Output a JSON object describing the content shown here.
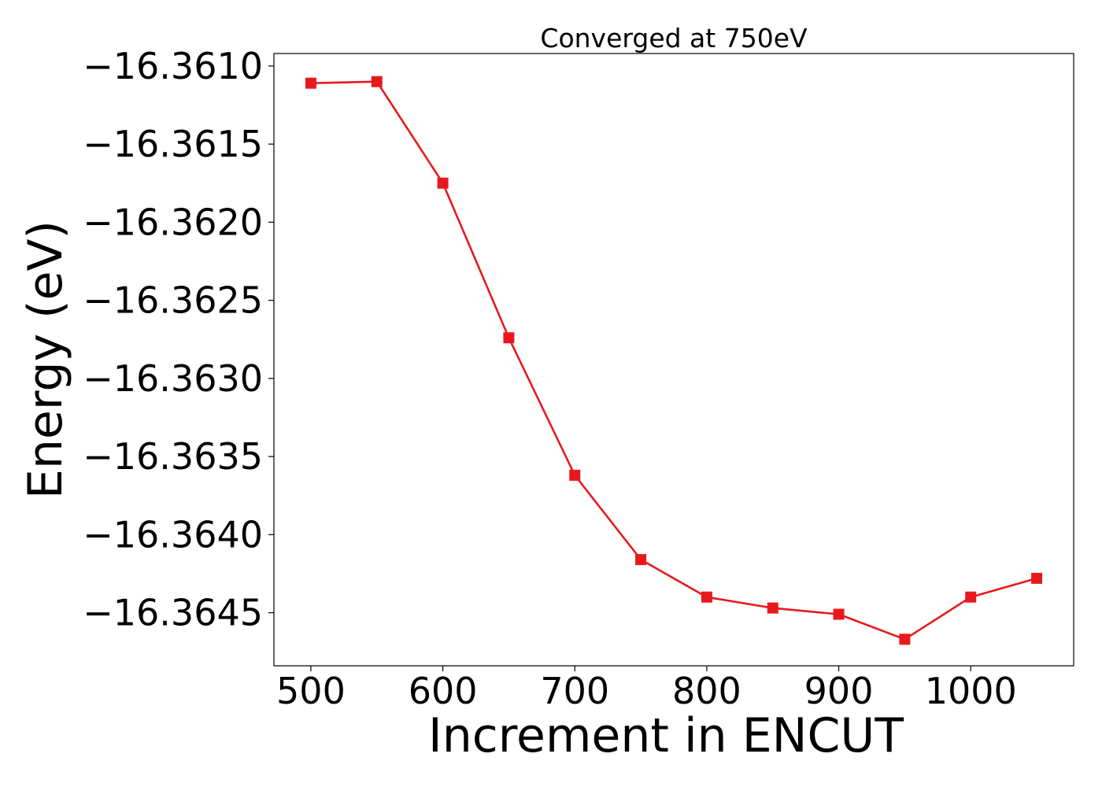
{
  "chart_data": {
    "type": "line",
    "title": "Converged at 750eV",
    "xlabel": "Increment in ENCUT",
    "ylabel": "Energy (eV)",
    "xlim": [
      472,
      1078
    ],
    "ylim": [
      -16.36484,
      -16.36092
    ],
    "xticks": [
      500,
      600,
      700,
      800,
      900,
      1000
    ],
    "xtick_labels": [
      "500",
      "600",
      "700",
      "800",
      "900",
      "1000"
    ],
    "yticks": [
      -16.361,
      -16.3615,
      -16.362,
      -16.3625,
      -16.363,
      -16.3635,
      -16.364,
      -16.3645
    ],
    "ytick_labels": [
      "−16.3610",
      "−16.3615",
      "−16.3620",
      "−16.3625",
      "−16.3630",
      "−16.3635",
      "−16.3640",
      "−16.3645"
    ],
    "grid": false,
    "series": [
      {
        "color": "#e8191d",
        "marker": "square",
        "x": [
          500,
          550,
          600,
          650,
          700,
          750,
          800,
          850,
          900,
          950,
          1000,
          1050
        ],
        "y": [
          -16.36111,
          -16.3611,
          -16.36175,
          -16.36274,
          -16.36362,
          -16.36416,
          -16.3644,
          -16.36447,
          -16.36451,
          -16.36467,
          -16.3644,
          -16.36428
        ]
      }
    ]
  }
}
